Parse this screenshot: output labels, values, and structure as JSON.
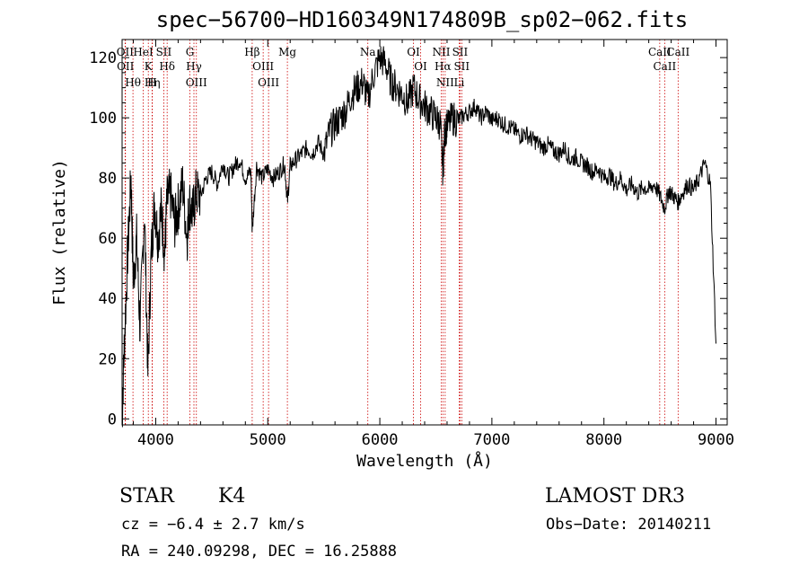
{
  "chart_data": {
    "type": "line",
    "title": "spec−56700−HD160349N174809B_sp02−062.fits",
    "xlabel": "Wavelength (Å)",
    "ylabel": "Flux (relative)",
    "xlim": [
      3700,
      9100
    ],
    "ylim": [
      -2,
      126
    ],
    "xticks": [
      4000,
      5000,
      6000,
      7000,
      8000,
      9000
    ],
    "yticks": [
      0,
      20,
      40,
      60,
      80,
      100,
      120
    ],
    "grid": false,
    "series": [
      {
        "name": "spectrum",
        "x": [
          3700,
          3720,
          3750,
          3780,
          3800,
          3830,
          3860,
          3900,
          3930,
          3960,
          3990,
          4020,
          4050,
          4080,
          4100,
          4130,
          4170,
          4200,
          4240,
          4280,
          4300,
          4330,
          4360,
          4400,
          4450,
          4500,
          4550,
          4600,
          4650,
          4700,
          4750,
          4800,
          4850,
          4861,
          4900,
          4950,
          5000,
          5050,
          5100,
          5150,
          5175,
          5200,
          5250,
          5300,
          5350,
          5400,
          5450,
          5500,
          5550,
          5600,
          5650,
          5700,
          5750,
          5800,
          5850,
          5890,
          5950,
          6000,
          6050,
          6100,
          6150,
          6200,
          6250,
          6300,
          6350,
          6400,
          6450,
          6500,
          6540,
          6563,
          6580,
          6600,
          6650,
          6700,
          6750,
          6800,
          6850,
          6900,
          6950,
          7000,
          7050,
          7100,
          7150,
          7200,
          7250,
          7300,
          7350,
          7400,
          7450,
          7500,
          7550,
          7600,
          7650,
          7700,
          7750,
          7800,
          7850,
          7900,
          7950,
          8000,
          8050,
          8100,
          8150,
          8200,
          8250,
          8300,
          8350,
          8400,
          8450,
          8500,
          8542,
          8580,
          8620,
          8662,
          8700,
          8750,
          8800,
          8850,
          8900,
          8950,
          9000
        ],
        "values": [
          0,
          25,
          55,
          80,
          45,
          60,
          30,
          70,
          15,
          55,
          72,
          60,
          70,
          55,
          72,
          75,
          65,
          70,
          78,
          60,
          72,
          68,
          75,
          74,
          80,
          82,
          78,
          85,
          80,
          84,
          86,
          80,
          82,
          62,
          84,
          80,
          83,
          80,
          82,
          85,
          72,
          84,
          86,
          88,
          90,
          88,
          92,
          88,
          95,
          98,
          100,
          103,
          108,
          110,
          112,
          106,
          115,
          120,
          118,
          112,
          110,
          108,
          105,
          110,
          106,
          104,
          102,
          100,
          98,
          82,
          96,
          97,
          100,
          99,
          101,
          102,
          104,
          100,
          102,
          99,
          100,
          98,
          97,
          96,
          94,
          95,
          93,
          92,
          90,
          91,
          89,
          88,
          90,
          86,
          87,
          85,
          84,
          82,
          83,
          80,
          81,
          78,
          80,
          76,
          78,
          75,
          77,
          76,
          78,
          74,
          70,
          76,
          74,
          72,
          75,
          78,
          76,
          80,
          85,
          78,
          25
        ]
      }
    ],
    "lines": [
      {
        "label": "Hθ",
        "x": 3797
      },
      {
        "label": "OII",
        "x": 3727
      },
      {
        "label": "OII",
        "x": 3730
      },
      {
        "label": "HeI",
        "x": 3889
      },
      {
        "label": "K",
        "x": 3934
      },
      {
        "label": "Hη",
        "x": 3970
      },
      {
        "label": "H",
        "x": 3968
      },
      {
        "label": "SII",
        "x": 4072
      },
      {
        "label": "Hδ",
        "x": 4102
      },
      {
        "label": "OIII",
        "x": 4363
      },
      {
        "label": "Hγ",
        "x": 4341
      },
      {
        "label": "G",
        "x": 4305
      },
      {
        "label": "Hβ",
        "x": 4861
      },
      {
        "label": "OIII",
        "x": 4959
      },
      {
        "label": "OIII",
        "x": 5007
      },
      {
        "label": "Mg",
        "x": 5175
      },
      {
        "label": "Na",
        "x": 5893
      },
      {
        "label": "OI",
        "x": 6300
      },
      {
        "label": "OI",
        "x": 6364
      },
      {
        "label": "Hα",
        "x": 6563
      },
      {
        "label": "NII",
        "x": 6548
      },
      {
        "label": "NII",
        "x": 6583
      },
      {
        "label": "Li",
        "x": 6708
      },
      {
        "label": "SII",
        "x": 6716
      },
      {
        "label": "SII",
        "x": 6731
      },
      {
        "label": "CaII",
        "x": 8498
      },
      {
        "label": "CaII",
        "x": 8542
      },
      {
        "label": "CaII",
        "x": 8662
      }
    ]
  },
  "info": {
    "object_class": "STAR",
    "subclass": "K4",
    "survey": "LAMOST DR3",
    "redshift": "cz = −6.4 ± 2.7 km/s",
    "obs_date": "Obs−Date: 20140211",
    "coords": "RA = 240.09298, DEC =  16.25888"
  },
  "colors": {
    "axis": "#000000",
    "spectrum": "#000000",
    "line_marker": "#cc0000"
  }
}
